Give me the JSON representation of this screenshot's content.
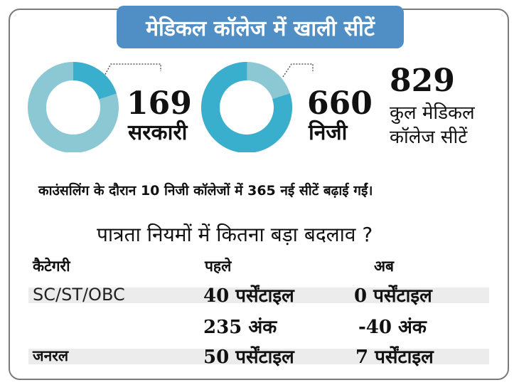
{
  "title": "मेडिकल कॉलेज में खाली सीटें",
  "colors": {
    "banner": "#4f8fc6",
    "donut_light": "#8cc7d4",
    "donut_dark": "#3aaecd",
    "leader": "#555555"
  },
  "stats": {
    "government": {
      "value": "169",
      "label": "सरकारी",
      "share": 0.2
    },
    "private": {
      "value": "660",
      "label": "निजी",
      "share": 0.8
    },
    "total": {
      "value": "829",
      "label_line1": "कुल मेडिकल",
      "label_line2": "कॉलेज सीटें"
    }
  },
  "note": "काउंसलिंग के दौरान 10 निजी कॉलेजों में 365 नई सीटें बढ़ाई गईं।",
  "eligibility": {
    "heading": "पात्रता नियमों में कितना बड़ा बदलाव ?",
    "columns": {
      "category": "कैटेगरी",
      "before": "पहले",
      "now": "अब"
    },
    "rows": [
      {
        "category": "SC/ST/OBC",
        "before": "40 पर्सेंटाइल",
        "now": "0 पर्सेंटाइल"
      },
      {
        "category": "",
        "before": "235 अंक",
        "now": "-40 अंक"
      },
      {
        "category": "जनरल",
        "before": "50 पर्सेंटाइल",
        "now": "7 पर्सेंटाइल"
      }
    ]
  }
}
